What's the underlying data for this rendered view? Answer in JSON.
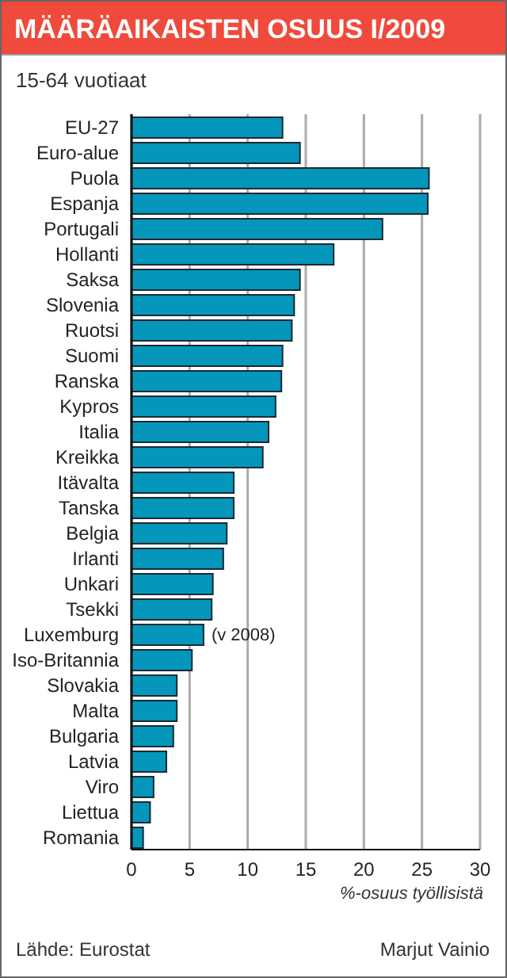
{
  "chart_data": {
    "type": "bar",
    "orientation": "horizontal",
    "title": "MÄÄRÄAIKAISTEN OSUUS I/2009",
    "subtitle": "15-64 vuotiaat",
    "xlabel": "%-osuus työllisistä",
    "categories": [
      "EU-27",
      "Euro-alue",
      "Puola",
      "Espanja",
      "Portugali",
      "Hollanti",
      "Saksa",
      "Slovenia",
      "Ruotsi",
      "Suomi",
      "Ranska",
      "Kypros",
      "Italia",
      "Kreikka",
      "Itävalta",
      "Tanska",
      "Belgia",
      "Irlanti",
      "Unkari",
      "Tsekki",
      "Luxemburg",
      "Iso-Britannia",
      "Slovakia",
      "Malta",
      "Bulgaria",
      "Latvia",
      "Viro",
      "Liettua",
      "Romania"
    ],
    "values": [
      13.0,
      14.5,
      25.6,
      25.5,
      21.6,
      17.4,
      14.5,
      14.0,
      13.8,
      13.0,
      12.9,
      12.4,
      11.8,
      11.3,
      8.8,
      8.8,
      8.2,
      7.9,
      7.0,
      6.9,
      6.2,
      5.2,
      3.9,
      3.9,
      3.6,
      3.0,
      1.9,
      1.6,
      1.0
    ],
    "color": "#0596bb",
    "xlim": [
      0,
      30
    ],
    "xticks": [
      0,
      5,
      10,
      15,
      20,
      25,
      30
    ],
    "grid": "x",
    "legend": false,
    "annotations": [
      {
        "text": "(v 2008)",
        "x": 6.2,
        "y": "Luxemburg"
      },
      "Lähde: Eurostat",
      "Marjut Vainio"
    ]
  }
}
